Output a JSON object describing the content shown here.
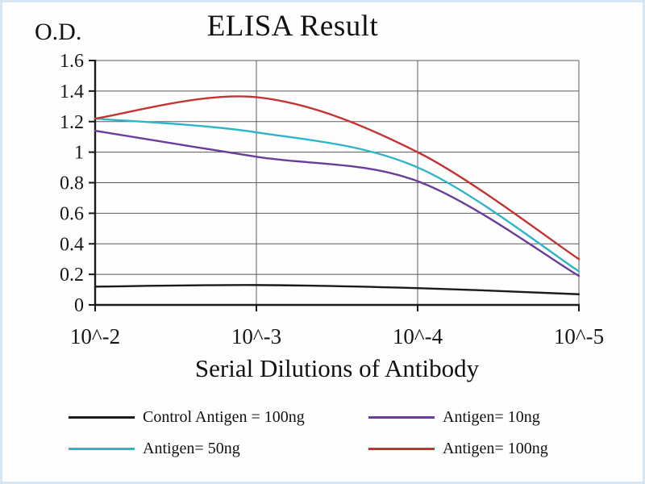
{
  "chart_data": {
    "type": "line",
    "title": "ELISA Result",
    "ylabel": "O.D.",
    "xlabel": "Serial Dilutions of Antibody",
    "x_ticklabels": [
      "10^-2",
      "10^-3",
      "10^-4",
      "10^-5"
    ],
    "y_ticks": [
      0,
      0.2,
      0.4,
      0.6,
      0.8,
      1,
      1.2,
      1.4,
      1.6
    ],
    "y_ticklabels": [
      "0",
      "0.2",
      "0.4",
      "0.6",
      "0.8",
      "1",
      "1.2",
      "1.4",
      "1.6"
    ],
    "ylim": [
      0,
      1.6
    ],
    "grid": true,
    "legend_position": "bottom",
    "colors": {
      "axis": "#1a1a1a",
      "grid": "#5a5a5a",
      "background": "#fefefe"
    },
    "series": [
      {
        "name": "Control Antigen = 100ng",
        "color": "#1a1a1a",
        "values": [
          0.12,
          0.13,
          0.11,
          0.07
        ]
      },
      {
        "name": "Antigen= 10ng",
        "color": "#6a3d9a",
        "values": [
          1.14,
          0.97,
          0.81,
          0.19
        ]
      },
      {
        "name": "Antigen= 50ng",
        "color": "#2eb5c9",
        "values": [
          1.22,
          1.13,
          0.9,
          0.22
        ]
      },
      {
        "name": "Antigen= 100ng",
        "color": "#c43434",
        "values": [
          1.22,
          1.36,
          1.0,
          0.3
        ]
      }
    ]
  }
}
